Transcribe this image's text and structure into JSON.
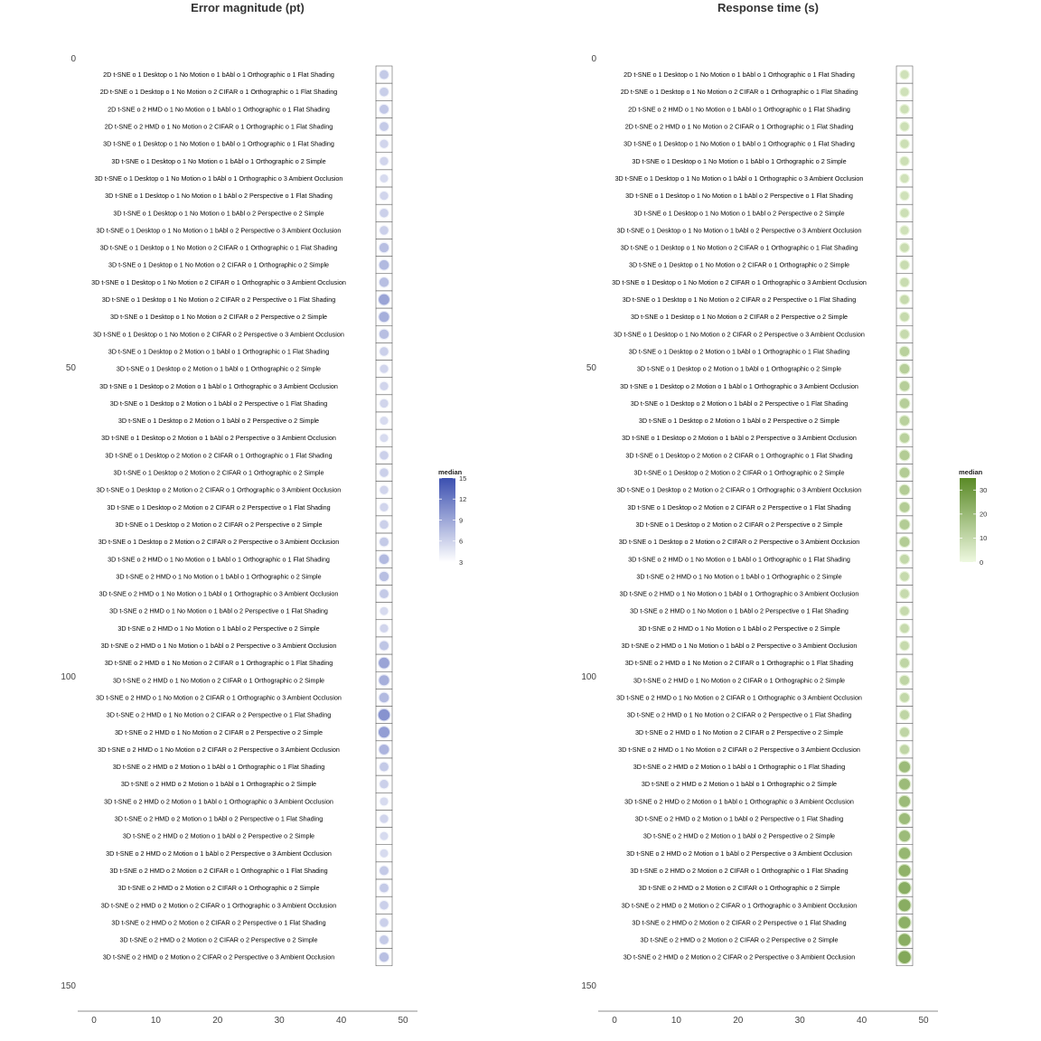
{
  "chart_data": [
    {
      "type": "heatmap",
      "title": "Error magnitude (pt)",
      "xlim": [
        0,
        50
      ],
      "x_ticks": [
        "0",
        "10",
        "20",
        "30",
        "40",
        "50"
      ],
      "ylim": [
        0,
        150
      ],
      "y_ticks": [
        "0",
        "50",
        "100",
        "150"
      ],
      "legend": {
        "title": "median",
        "ticks": [
          "15",
          "12",
          "9",
          "6",
          "3"
        ],
        "range": [
          3,
          15
        ],
        "low_color": "#ffffff",
        "high_color": "#3b4fb0",
        "position": "right"
      },
      "rows": [
        {
          "label": "2D t-SNE o 1 Desktop o 1 No Motion o 1 bAbl o 1 Orthographic o 1 Flat Shading",
          "value": 6.5
        },
        {
          "label": "2D t-SNE o 1 Desktop o 1 No Motion o 2 CIFAR o 1 Orthographic o 1 Flat Shading",
          "value": 6.2
        },
        {
          "label": "2D t-SNE o 2 HMD o 1 No Motion o 1 bAbl o 1 Orthographic o 1 Flat Shading",
          "value": 6.8
        },
        {
          "label": "2D t-SNE o 2 HMD o 1 No Motion o 2 CIFAR o 1 Orthographic o 1 Flat Shading",
          "value": 6.5
        },
        {
          "label": "3D t-SNE o 1 Desktop o 1 No Motion o 1 bAbl o 1 Orthographic o 1 Flat Shading",
          "value": 5.5
        },
        {
          "label": "3D t-SNE o 1 Desktop o 1 No Motion o 1 bAbl o 1 Orthographic o 2 Simple",
          "value": 5.5
        },
        {
          "label": "3D t-SNE o 1 Desktop o 1 No Motion o 1 bAbl o 1 Orthographic o 3 Ambient Occlusion",
          "value": 5.0
        },
        {
          "label": "3D t-SNE o 1 Desktop o 1 No Motion o 1 bAbl o 2 Perspective o 1 Flat Shading",
          "value": 5.5
        },
        {
          "label": "3D t-SNE o 1 Desktop o 1 No Motion o 1 bAbl o 2 Perspective o 2 Simple",
          "value": 6.0
        },
        {
          "label": "3D t-SNE o 1 Desktop o 1 No Motion o 1 bAbl o 2 Perspective o 3 Ambient Occlusion",
          "value": 6.0
        },
        {
          "label": "3D t-SNE o 1 Desktop o 1 No Motion o 2 CIFAR o 1 Orthographic o 1 Flat Shading",
          "value": 7.5
        },
        {
          "label": "3D t-SNE o 1 Desktop o 1 No Motion o 2 CIFAR o 1 Orthographic o 2 Simple",
          "value": 8.0
        },
        {
          "label": "3D t-SNE o 1 Desktop o 1 No Motion o 2 CIFAR o 1 Orthographic o 3 Ambient Occlusion",
          "value": 7.5
        },
        {
          "label": "3D t-SNE o 1 Desktop o 1 No Motion o 2 CIFAR o 2 Perspective o 1 Flat Shading",
          "value": 10.0
        },
        {
          "label": "3D t-SNE o 1 Desktop o 1 No Motion o 2 CIFAR o 2 Perspective o 2 Simple",
          "value": 9.0
        },
        {
          "label": "3D t-SNE o 1 Desktop o 1 No Motion o 2 CIFAR o 2 Perspective o 3 Ambient Occlusion",
          "value": 7.5
        },
        {
          "label": "3D t-SNE o 1 Desktop o 2 Motion o 1 bAbl o 1 Orthographic o 1 Flat Shading",
          "value": 6.0
        },
        {
          "label": "3D t-SNE o 1 Desktop o 2 Motion o 1 bAbl o 1 Orthographic o 2 Simple",
          "value": 5.5
        },
        {
          "label": "3D t-SNE o 1 Desktop o 2 Motion o 1 bAbl o 1 Orthographic o 3 Ambient Occlusion",
          "value": 5.5
        },
        {
          "label": "3D t-SNE o 1 Desktop o 2 Motion o 1 bAbl o 2 Perspective o 1 Flat Shading",
          "value": 5.5
        },
        {
          "label": "3D t-SNE o 1 Desktop o 2 Motion o 1 bAbl o 2 Perspective o 2 Simple",
          "value": 5.0
        },
        {
          "label": "3D t-SNE o 1 Desktop o 2 Motion o 1 bAbl o 2 Perspective o 3 Ambient Occlusion",
          "value": 5.0
        },
        {
          "label": "3D t-SNE o 1 Desktop o 2 Motion o 2 CIFAR o 1 Orthographic o 1 Flat Shading",
          "value": 6.0
        },
        {
          "label": "3D t-SNE o 1 Desktop o 2 Motion o 2 CIFAR o 1 Orthographic o 2 Simple",
          "value": 6.0
        },
        {
          "label": "3D t-SNE o 1 Desktop o 2 Motion o 2 CIFAR o 1 Orthographic o 3 Ambient Occlusion",
          "value": 5.5
        },
        {
          "label": "3D t-SNE o 1 Desktop o 2 Motion o 2 CIFAR o 2 Perspective o 1 Flat Shading",
          "value": 5.5
        },
        {
          "label": "3D t-SNE o 1 Desktop o 2 Motion o 2 CIFAR o 2 Perspective o 2 Simple",
          "value": 6.0
        },
        {
          "label": "3D t-SNE o 1 Desktop o 2 Motion o 2 CIFAR o 2 Perspective o 3 Ambient Occlusion",
          "value": 6.5
        },
        {
          "label": "3D t-SNE o 2 HMD o 1 No Motion o 1 bAbl o 1 Orthographic o 1 Flat Shading",
          "value": 8.0
        },
        {
          "label": "3D t-SNE o 2 HMD o 1 No Motion o 1 bAbl o 1 Orthographic o 2 Simple",
          "value": 7.5
        },
        {
          "label": "3D t-SNE o 2 HMD o 1 No Motion o 1 bAbl o 1 Orthographic o 3 Ambient Occlusion",
          "value": 6.5
        },
        {
          "label": "3D t-SNE o 2 HMD o 1 No Motion o 1 bAbl o 2 Perspective o 1 Flat Shading",
          "value": 5.0
        },
        {
          "label": "3D t-SNE o 2 HMD o 1 No Motion o 1 bAbl o 2 Perspective o 2 Simple",
          "value": 5.5
        },
        {
          "label": "3D t-SNE o 2 HMD o 1 No Motion o 1 bAbl o 2 Perspective o 3 Ambient Occlusion",
          "value": 7.0
        },
        {
          "label": "3D t-SNE o 2 HMD o 1 No Motion o 2 CIFAR o 1 Orthographic o 1 Flat Shading",
          "value": 10.0
        },
        {
          "label": "3D t-SNE o 2 HMD o 1 No Motion o 2 CIFAR o 1 Orthographic o 2 Simple",
          "value": 9.0
        },
        {
          "label": "3D t-SNE o 2 HMD o 1 No Motion o 2 CIFAR o 1 Orthographic o 3 Ambient Occlusion",
          "value": 8.0
        },
        {
          "label": "3D t-SNE o 2 HMD o 1 No Motion o 2 CIFAR o 2 Perspective o 1 Flat Shading",
          "value": 11.5
        },
        {
          "label": "3D t-SNE o 2 HMD o 1 No Motion o 2 CIFAR o 2 Perspective o 2 Simple",
          "value": 10.5
        },
        {
          "label": "3D t-SNE o 2 HMD o 1 No Motion o 2 CIFAR o 2 Perspective o 3 Ambient Occlusion",
          "value": 8.5
        },
        {
          "label": "3D t-SNE o 2 HMD o 2 Motion o 1 bAbl o 1 Orthographic o 1 Flat Shading",
          "value": 6.5
        },
        {
          "label": "3D t-SNE o 2 HMD o 2 Motion o 1 bAbl o 1 Orthographic o 2 Simple",
          "value": 6.0
        },
        {
          "label": "3D t-SNE o 2 HMD o 2 Motion o 1 bAbl o 1 Orthographic o 3 Ambient Occlusion",
          "value": 5.0
        },
        {
          "label": "3D t-SNE o 2 HMD o 2 Motion o 1 bAbl o 2 Perspective o 1 Flat Shading",
          "value": 5.5
        },
        {
          "label": "3D t-SNE o 2 HMD o 2 Motion o 1 bAbl o 2 Perspective o 2 Simple",
          "value": 5.0
        },
        {
          "label": "3D t-SNE o 2 HMD o 2 Motion o 1 bAbl o 2 Perspective o 3 Ambient Occlusion",
          "value": 5.0
        },
        {
          "label": "3D t-SNE o 2 HMD o 2 Motion o 2 CIFAR o 1 Orthographic o 1 Flat Shading",
          "value": 6.5
        },
        {
          "label": "3D t-SNE o 2 HMD o 2 Motion o 2 CIFAR o 1 Orthographic o 2 Simple",
          "value": 6.5
        },
        {
          "label": "3D t-SNE o 2 HMD o 2 Motion o 2 CIFAR o 1 Orthographic o 3 Ambient Occlusion",
          "value": 6.0
        },
        {
          "label": "3D t-SNE o 2 HMD o 2 Motion o 2 CIFAR o 2 Perspective o 1 Flat Shading",
          "value": 6.0
        },
        {
          "label": "3D t-SNE o 2 HMD o 2 Motion o 2 CIFAR o 2 Perspective o 2 Simple",
          "value": 6.5
        },
        {
          "label": "3D t-SNE o 2 HMD o 2 Motion o 2 CIFAR o 2 Perspective o 3 Ambient Occlusion",
          "value": 7.5
        }
      ]
    },
    {
      "type": "heatmap",
      "title": "Response time (s)",
      "xlim": [
        0,
        50
      ],
      "x_ticks": [
        "0",
        "10",
        "20",
        "30",
        "40",
        "50"
      ],
      "ylim": [
        0,
        150
      ],
      "y_ticks": [
        "0",
        "50",
        "100",
        "150"
      ],
      "legend": {
        "title": "median",
        "ticks": [
          "30",
          "20",
          "10",
          "0"
        ],
        "range": [
          0,
          35
        ],
        "low_color": "#eef8e0",
        "high_color": "#5a8a26",
        "position": "right"
      },
      "rows": [
        {
          "label": "2D t-SNE o 1 Desktop o 1 No Motion o 1 bAbl o 1 Orthographic o 1 Flat Shading",
          "value": 6
        },
        {
          "label": "2D t-SNE o 1 Desktop o 1 No Motion o 2 CIFAR o 1 Orthographic o 1 Flat Shading",
          "value": 6
        },
        {
          "label": "2D t-SNE o 2 HMD o 1 No Motion o 1 bAbl o 1 Orthographic o 1 Flat Shading",
          "value": 7
        },
        {
          "label": "2D t-SNE o 2 HMD o 1 No Motion o 2 CIFAR o 1 Orthographic o 1 Flat Shading",
          "value": 7
        },
        {
          "label": "3D t-SNE o 1 Desktop o 1 No Motion o 1 bAbl o 1 Orthographic o 1 Flat Shading",
          "value": 7
        },
        {
          "label": "3D t-SNE o 1 Desktop o 1 No Motion o 1 bAbl o 1 Orthographic o 2 Simple",
          "value": 7
        },
        {
          "label": "3D t-SNE o 1 Desktop o 1 No Motion o 1 bAbl o 1 Orthographic o 3 Ambient Occlusion",
          "value": 6
        },
        {
          "label": "3D t-SNE o 1 Desktop o 1 No Motion o 1 bAbl o 2 Perspective o 1 Flat Shading",
          "value": 6
        },
        {
          "label": "3D t-SNE o 1 Desktop o 1 No Motion o 1 bAbl o 2 Perspective o 2 Simple",
          "value": 7
        },
        {
          "label": "3D t-SNE o 1 Desktop o 1 No Motion o 1 bAbl o 2 Perspective o 3 Ambient Occlusion",
          "value": 6
        },
        {
          "label": "3D t-SNE o 1 Desktop o 1 No Motion o 2 CIFAR o 1 Orthographic o 1 Flat Shading",
          "value": 8
        },
        {
          "label": "3D t-SNE o 1 Desktop o 1 No Motion o 2 CIFAR o 1 Orthographic o 2 Simple",
          "value": 8
        },
        {
          "label": "3D t-SNE o 1 Desktop o 1 No Motion o 2 CIFAR o 1 Orthographic o 3 Ambient Occlusion",
          "value": 8
        },
        {
          "label": "3D t-SNE o 1 Desktop o 1 No Motion o 2 CIFAR o 2 Perspective o 1 Flat Shading",
          "value": 9
        },
        {
          "label": "3D t-SNE o 1 Desktop o 1 No Motion o 2 CIFAR o 2 Perspective o 2 Simple",
          "value": 9
        },
        {
          "label": "3D t-SNE o 1 Desktop o 1 No Motion o 2 CIFAR o 2 Perspective o 3 Ambient Occlusion",
          "value": 9
        },
        {
          "label": "3D t-SNE o 1 Desktop o 2 Motion o 1 bAbl o 1 Orthographic o 1 Flat Shading",
          "value": 13
        },
        {
          "label": "3D t-SNE o 1 Desktop o 2 Motion o 1 bAbl o 1 Orthographic o 2 Simple",
          "value": 14
        },
        {
          "label": "3D t-SNE o 1 Desktop o 2 Motion o 1 bAbl o 1 Orthographic o 3 Ambient Occlusion",
          "value": 14
        },
        {
          "label": "3D t-SNE o 1 Desktop o 2 Motion o 1 bAbl o 2 Perspective o 1 Flat Shading",
          "value": 14
        },
        {
          "label": "3D t-SNE o 1 Desktop o 2 Motion o 1 bAbl o 2 Perspective o 2 Simple",
          "value": 13
        },
        {
          "label": "3D t-SNE o 1 Desktop o 2 Motion o 1 bAbl o 2 Perspective o 3 Ambient Occlusion",
          "value": 13
        },
        {
          "label": "3D t-SNE o 1 Desktop o 2 Motion o 2 CIFAR o 1 Orthographic o 1 Flat Shading",
          "value": 15
        },
        {
          "label": "3D t-SNE o 1 Desktop o 2 Motion o 2 CIFAR o 1 Orthographic o 2 Simple",
          "value": 15
        },
        {
          "label": "3D t-SNE o 1 Desktop o 2 Motion o 2 CIFAR o 1 Orthographic o 3 Ambient Occlusion",
          "value": 15
        },
        {
          "label": "3D t-SNE o 1 Desktop o 2 Motion o 2 CIFAR o 2 Perspective o 1 Flat Shading",
          "value": 15
        },
        {
          "label": "3D t-SNE o 1 Desktop o 2 Motion o 2 CIFAR o 2 Perspective o 2 Simple",
          "value": 15
        },
        {
          "label": "3D t-SNE o 1 Desktop o 2 Motion o 2 CIFAR o 2 Perspective o 3 Ambient Occlusion",
          "value": 15
        },
        {
          "label": "3D t-SNE o 2 HMD o 1 No Motion o 1 bAbl o 1 Orthographic o 1 Flat Shading",
          "value": 10
        },
        {
          "label": "3D t-SNE o 2 HMD o 1 No Motion o 1 bAbl o 1 Orthographic o 2 Simple",
          "value": 9
        },
        {
          "label": "3D t-SNE o 2 HMD o 1 No Motion o 1 bAbl o 1 Orthographic o 3 Ambient Occlusion",
          "value": 9
        },
        {
          "label": "3D t-SNE o 2 HMD o 1 No Motion o 1 bAbl o 2 Perspective o 1 Flat Shading",
          "value": 9
        },
        {
          "label": "3D t-SNE o 2 HMD o 1 No Motion o 1 bAbl o 2 Perspective o 2 Simple",
          "value": 9
        },
        {
          "label": "3D t-SNE o 2 HMD o 1 No Motion o 1 bAbl o 2 Perspective o 3 Ambient Occlusion",
          "value": 9
        },
        {
          "label": "3D t-SNE o 2 HMD o 1 No Motion o 2 CIFAR o 1 Orthographic o 1 Flat Shading",
          "value": 11
        },
        {
          "label": "3D t-SNE o 2 HMD o 1 No Motion o 2 CIFAR o 1 Orthographic o 2 Simple",
          "value": 11
        },
        {
          "label": "3D t-SNE o 2 HMD o 1 No Motion o 2 CIFAR o 1 Orthographic o 3 Ambient Occlusion",
          "value": 10
        },
        {
          "label": "3D t-SNE o 2 HMD o 1 No Motion o 2 CIFAR o 2 Perspective o 1 Flat Shading",
          "value": 11
        },
        {
          "label": "3D t-SNE o 2 HMD o 1 No Motion o 2 CIFAR o 2 Perspective o 2 Simple",
          "value": 11
        },
        {
          "label": "3D t-SNE o 2 HMD o 1 No Motion o 2 CIFAR o 2 Perspective o 3 Ambient Occlusion",
          "value": 11
        },
        {
          "label": "3D t-SNE o 2 HMD o 2 Motion o 1 bAbl o 1 Orthographic o 1 Flat Shading",
          "value": 22
        },
        {
          "label": "3D t-SNE o 2 HMD o 2 Motion o 1 bAbl o 1 Orthographic o 2 Simple",
          "value": 22
        },
        {
          "label": "3D t-SNE o 2 HMD o 2 Motion o 1 bAbl o 1 Orthographic o 3 Ambient Occlusion",
          "value": 22
        },
        {
          "label": "3D t-SNE o 2 HMD o 2 Motion o 1 bAbl o 2 Perspective o 1 Flat Shading",
          "value": 22
        },
        {
          "label": "3D t-SNE o 2 HMD o 2 Motion o 1 bAbl o 2 Perspective o 2 Simple",
          "value": 22
        },
        {
          "label": "3D t-SNE o 2 HMD o 2 Motion o 1 bAbl o 2 Perspective o 3 Ambient Occlusion",
          "value": 24
        },
        {
          "label": "3D t-SNE o 2 HMD o 2 Motion o 2 CIFAR o 1 Orthographic o 1 Flat Shading",
          "value": 26
        },
        {
          "label": "3D t-SNE o 2 HMD o 2 Motion o 2 CIFAR o 1 Orthographic o 2 Simple",
          "value": 28
        },
        {
          "label": "3D t-SNE o 2 HMD o 2 Motion o 2 CIFAR o 1 Orthographic o 3 Ambient Occlusion",
          "value": 28
        },
        {
          "label": "3D t-SNE o 2 HMD o 2 Motion o 2 CIFAR o 2 Perspective o 1 Flat Shading",
          "value": 27
        },
        {
          "label": "3D t-SNE o 2 HMD o 2 Motion o 2 CIFAR o 2 Perspective o 2 Simple",
          "value": 28
        },
        {
          "label": "3D t-SNE o 2 HMD o 2 Motion o 2 CIFAR o 2 Perspective o 3 Ambient Occlusion",
          "value": 30
        }
      ]
    }
  ]
}
